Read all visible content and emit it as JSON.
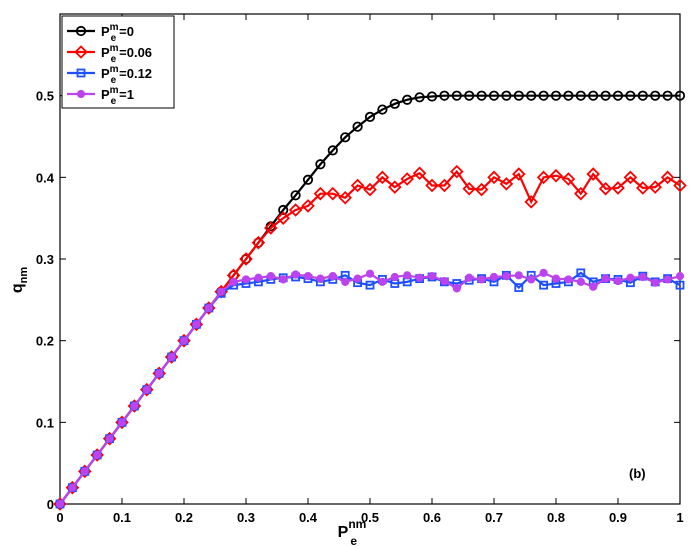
{
  "chart_data": {
    "type": "line",
    "annotation": "(b)",
    "xlabel": {
      "main": "P",
      "sup": "nm",
      "sub": "e"
    },
    "ylabel": {
      "main": "q",
      "sub": "nm"
    },
    "xlim": [
      0,
      1
    ],
    "ylim": [
      0,
      0.6
    ],
    "xticks": [
      0,
      0.1,
      0.2,
      0.3,
      0.4,
      0.5,
      0.6,
      0.7,
      0.8,
      0.9,
      1
    ],
    "xtick_labels": [
      "0",
      "0.1",
      "0.2",
      "0.3",
      "0.4",
      "0.5",
      "0.6",
      "0.7",
      "0.8",
      "0.9",
      "1"
    ],
    "yticks": [
      0,
      0.1,
      0.2,
      0.3,
      0.4,
      0.5
    ],
    "ytick_labels": [
      "0",
      "0.1",
      "0.2",
      "0.3",
      "0.4",
      "0.5"
    ],
    "grid": false,
    "legend_position": "top-left",
    "x": [
      0,
      0.02,
      0.04,
      0.06,
      0.08,
      0.1,
      0.12,
      0.14,
      0.16,
      0.18,
      0.2,
      0.22,
      0.24,
      0.26,
      0.28,
      0.3,
      0.32,
      0.34,
      0.36,
      0.38,
      0.4,
      0.42,
      0.44,
      0.46,
      0.48,
      0.5,
      0.52,
      0.54,
      0.56,
      0.58,
      0.6,
      0.62,
      0.64,
      0.66,
      0.68,
      0.7,
      0.72,
      0.74,
      0.76,
      0.78,
      0.8,
      0.82,
      0.84,
      0.86,
      0.88,
      0.9,
      0.92,
      0.94,
      0.96,
      0.98,
      1
    ],
    "series": [
      {
        "name": "P^m_e=0",
        "label_main": "P",
        "label_sup": "m",
        "label_sub": "e",
        "label_rest": "=0",
        "color": "#000000",
        "marker": "circle",
        "values": [
          0,
          0.02,
          0.04,
          0.06,
          0.08,
          0.1,
          0.12,
          0.14,
          0.16,
          0.18,
          0.2,
          0.22,
          0.24,
          0.26,
          0.28,
          0.3,
          0.32,
          0.34,
          0.36,
          0.378,
          0.397,
          0.416,
          0.433,
          0.449,
          0.462,
          0.474,
          0.483,
          0.49,
          0.495,
          0.498,
          0.499,
          0.5,
          0.5,
          0.5,
          0.5,
          0.5,
          0.5,
          0.5,
          0.5,
          0.5,
          0.5,
          0.5,
          0.5,
          0.5,
          0.5,
          0.5,
          0.5,
          0.5,
          0.5,
          0.5,
          0.5
        ]
      },
      {
        "name": "P^m_e=0.06",
        "label_main": "P",
        "label_sup": "m",
        "label_sub": "e",
        "label_rest": "=0.06",
        "color": "#ff0000",
        "marker": "diamond",
        "values": [
          0,
          0.02,
          0.04,
          0.06,
          0.08,
          0.1,
          0.12,
          0.14,
          0.16,
          0.18,
          0.2,
          0.22,
          0.24,
          0.26,
          0.28,
          0.3,
          0.32,
          0.338,
          0.35,
          0.36,
          0.365,
          0.38,
          0.38,
          0.375,
          0.39,
          0.385,
          0.4,
          0.388,
          0.398,
          0.405,
          0.39,
          0.39,
          0.407,
          0.386,
          0.385,
          0.4,
          0.392,
          0.404,
          0.37,
          0.4,
          0.402,
          0.398,
          0.38,
          0.404,
          0.386,
          0.387,
          0.4,
          0.387,
          0.388,
          0.4,
          0.39
        ]
      },
      {
        "name": "P^m_e=0.12",
        "label_main": "P",
        "label_sup": "m",
        "label_sub": "e",
        "label_rest": "=0.12",
        "color": "#1f4fff",
        "marker": "square",
        "values": [
          0,
          0.02,
          0.04,
          0.06,
          0.08,
          0.1,
          0.12,
          0.14,
          0.16,
          0.18,
          0.2,
          0.22,
          0.24,
          0.258,
          0.268,
          0.27,
          0.272,
          0.275,
          0.277,
          0.278,
          0.276,
          0.272,
          0.275,
          0.28,
          0.271,
          0.268,
          0.275,
          0.27,
          0.272,
          0.276,
          0.278,
          0.272,
          0.27,
          0.274,
          0.276,
          0.272,
          0.28,
          0.265,
          0.28,
          0.268,
          0.27,
          0.272,
          0.283,
          0.272,
          0.276,
          0.275,
          0.271,
          0.279,
          0.272,
          0.276,
          0.268
        ]
      },
      {
        "name": "P^m_e=1",
        "label_main": "P",
        "label_sup": "m",
        "label_sub": "e",
        "label_rest": "=1",
        "color": "#bb44ee",
        "marker": "dot",
        "values": [
          0,
          0.02,
          0.04,
          0.06,
          0.08,
          0.1,
          0.12,
          0.14,
          0.16,
          0.18,
          0.2,
          0.22,
          0.24,
          0.26,
          0.272,
          0.275,
          0.277,
          0.279,
          0.275,
          0.281,
          0.279,
          0.276,
          0.279,
          0.272,
          0.276,
          0.282,
          0.272,
          0.278,
          0.28,
          0.277,
          0.279,
          0.273,
          0.264,
          0.277,
          0.275,
          0.278,
          0.279,
          0.28,
          0.275,
          0.283,
          0.276,
          0.275,
          0.272,
          0.266,
          0.276,
          0.273,
          0.277,
          0.278,
          0.271,
          0.275,
          0.279
        ]
      }
    ]
  }
}
